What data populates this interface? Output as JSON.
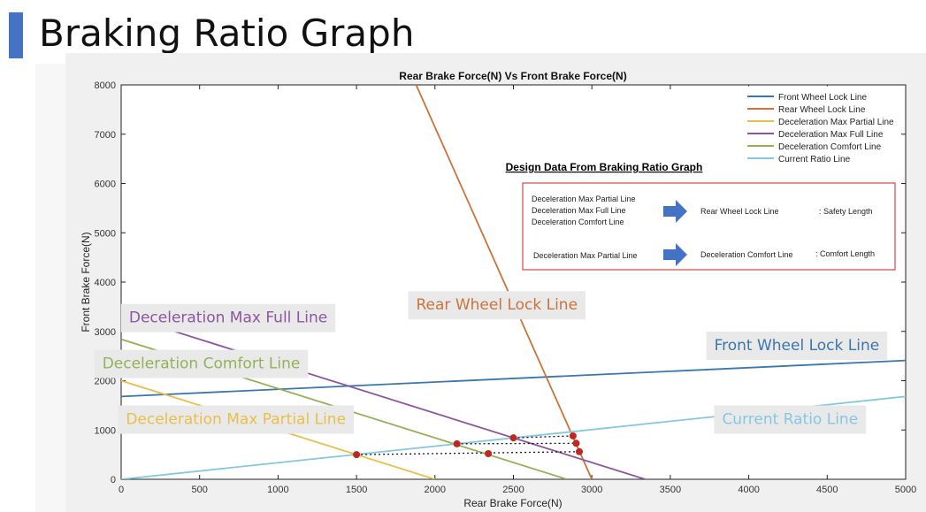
{
  "slide": {
    "title": "Braking Ratio Graph"
  },
  "colors": {
    "front_lock": "#3b76ad",
    "rear_lock": "#c8743c",
    "decel_partial": "#e9bf4a",
    "decel_full": "#8e55a0",
    "decel_comfort": "#94b158",
    "current_ratio": "#86c7e0",
    "points": "#c0281f",
    "box": "#d9534f",
    "arrow": "#4472c4"
  },
  "chart_data": {
    "type": "line",
    "title": "Rear Brake Force(N) Vs Front Brake Force(N)",
    "xlabel": "Rear Brake Force(N)",
    "ylabel": "Front Brake Force(N)",
    "xlim": [
      0,
      5000
    ],
    "ylim": [
      0,
      8000
    ],
    "xticks": [
      "0",
      "500",
      "1000",
      "1500",
      "2000",
      "2500",
      "3000",
      "3500",
      "4000",
      "4500",
      "5000"
    ],
    "yticks": [
      "0",
      "1000",
      "2000",
      "3000",
      "4000",
      "5000",
      "6000",
      "7000",
      "8000"
    ],
    "grid": false,
    "legend_position": "top-right",
    "series": [
      {
        "name": "Front Wheel Lock Line",
        "color_key": "front_lock",
        "x": [
          0,
          5000
        ],
        "y": [
          1680,
          2410
        ]
      },
      {
        "name": "Rear Wheel Lock Line",
        "color_key": "rear_lock",
        "x": [
          1880,
          3000
        ],
        "y": [
          8000,
          0
        ]
      },
      {
        "name": "Deceleration Max Partial Line",
        "color_key": "decel_partial",
        "x": [
          0,
          2000
        ],
        "y": [
          2000,
          0
        ]
      },
      {
        "name": "Deceleration Max Full Line",
        "color_key": "decel_full",
        "x": [
          0,
          3340
        ],
        "y": [
          3340,
          0
        ]
      },
      {
        "name": "Deceleration Comfort Line",
        "color_key": "decel_comfort",
        "x": [
          0,
          2840
        ],
        "y": [
          2840,
          0
        ]
      },
      {
        "name": "Current Ratio Line",
        "color_key": "current_ratio",
        "x": [
          0,
          5000
        ],
        "y": [
          0,
          1680
        ]
      }
    ],
    "points": [
      {
        "x": 1500,
        "y": 500
      },
      {
        "x": 2140,
        "y": 720
      },
      {
        "x": 2340,
        "y": 520
      },
      {
        "x": 2500,
        "y": 840
      },
      {
        "x": 2880,
        "y": 880
      },
      {
        "x": 2900,
        "y": 730
      },
      {
        "x": 2920,
        "y": 560
      }
    ],
    "dotted_segments": [
      {
        "x": [
          1500,
          2920
        ],
        "y": [
          500,
          560
        ]
      },
      {
        "x": [
          2140,
          2900
        ],
        "y": [
          720,
          730
        ]
      },
      {
        "x": [
          2500,
          2880
        ],
        "y": [
          840,
          880
        ]
      }
    ],
    "line_labels": [
      {
        "text": "Deceleration Max Full Line",
        "color_key": "decel_full",
        "x": 50,
        "y": 3180
      },
      {
        "text": "Deceleration Comfort Line",
        "color_key": "decel_comfort",
        "x": -120,
        "y": 2250
      },
      {
        "text": "Deceleration Max Partial Line",
        "color_key": "decel_partial",
        "x": 30,
        "y": 1120
      },
      {
        "text": "Rear Wheel Lock Line",
        "color_key": "rear_lock",
        "x": 1880,
        "y": 3440
      },
      {
        "text": "Front Wheel Lock Line",
        "color_key": "front_lock",
        "x": 3780,
        "y": 2620
      },
      {
        "text": "Current Ratio Line",
        "color_key": "current_ratio",
        "x": 3830,
        "y": 1120
      }
    ],
    "design_data": {
      "title": "Design Data From Braking Ratio Graph",
      "row1_left": [
        "Deceleration Max Partial Line",
        "Deceleration Max Full Line",
        "Deceleration Comfort Line"
      ],
      "row1_target": "Rear Wheel Lock Line",
      "row1_result": ": Safety Length",
      "row2_left": [
        "Deceleration Max Partial Line"
      ],
      "row2_target": "Deceleration Comfort Line",
      "row2_result": ": Comfort Length"
    }
  }
}
